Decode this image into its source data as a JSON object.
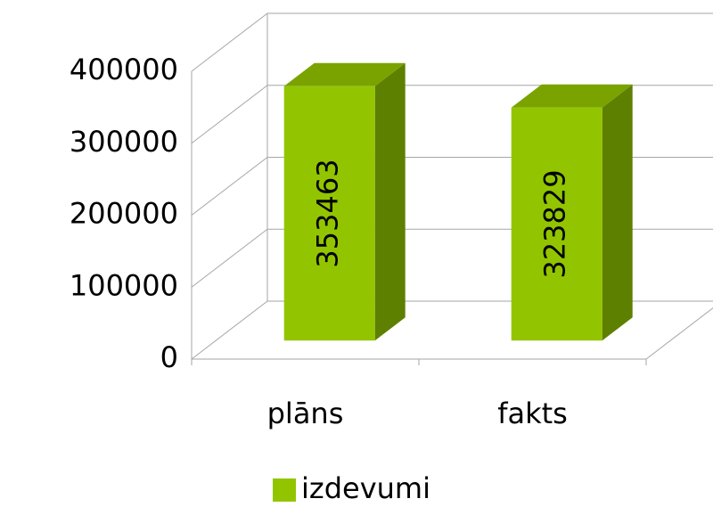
{
  "chart_data": {
    "type": "bar3d",
    "categories": [
      "plāns",
      "fakts"
    ],
    "series": [
      {
        "name": "izdevumi",
        "color": "#92c500",
        "values": [
          353463,
          323829
        ]
      }
    ],
    "ylim": [
      0,
      400000
    ],
    "yticks": [
      0,
      100000,
      200000,
      300000,
      400000
    ],
    "grid": true,
    "legend": "bottom",
    "data_labels": true
  }
}
